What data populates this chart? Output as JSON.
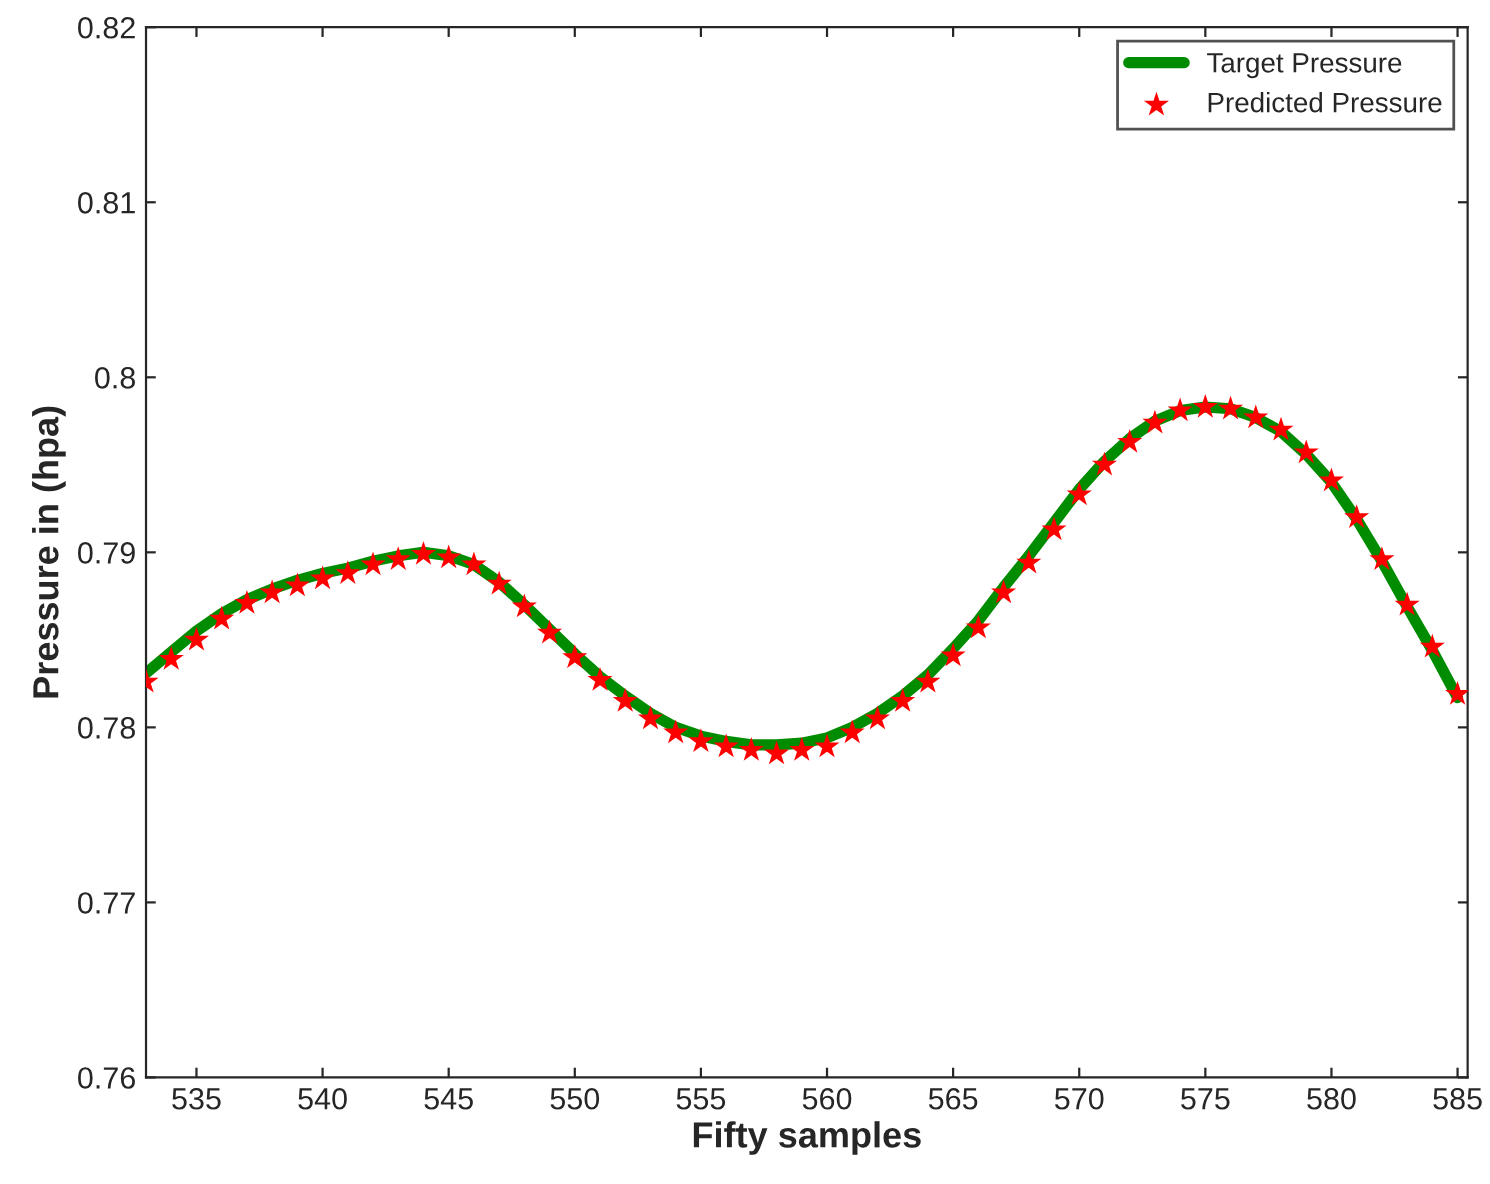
{
  "chart_data": {
    "type": "line",
    "xlabel": "Fifty samples",
    "ylabel": "Pressure in (hpa)",
    "x": [
      533,
      534,
      535,
      536,
      537,
      538,
      539,
      540,
      541,
      542,
      543,
      544,
      545,
      546,
      547,
      548,
      549,
      550,
      551,
      552,
      553,
      554,
      555,
      556,
      557,
      558,
      559,
      560,
      561,
      562,
      563,
      564,
      565,
      566,
      567,
      568,
      569,
      570,
      571,
      572,
      573,
      574,
      575,
      576,
      577,
      578,
      579,
      580,
      581,
      582,
      583,
      584,
      585
    ],
    "series": [
      {
        "name": "Target Pressure",
        "color": "#008c00",
        "marker": "none",
        "line_style": "solid",
        "values": [
          0.7831,
          0.7843,
          0.7855,
          0.7865,
          0.7873,
          0.7879,
          0.7884,
          0.7888,
          0.7891,
          0.7895,
          0.7898,
          0.79,
          0.7898,
          0.7893,
          0.7883,
          0.787,
          0.7856,
          0.7842,
          0.7829,
          0.7818,
          0.7808,
          0.78,
          0.7795,
          0.7792,
          0.779,
          0.779,
          0.7791,
          0.7794,
          0.78,
          0.7808,
          0.7818,
          0.783,
          0.7845,
          0.7861,
          0.788,
          0.7898,
          0.7917,
          0.7936,
          0.7952,
          0.7965,
          0.7975,
          0.7981,
          0.7983,
          0.7982,
          0.7977,
          0.7969,
          0.7956,
          0.794,
          0.7919,
          0.7895,
          0.7869,
          0.7844,
          0.7817
        ]
      },
      {
        "name": "Predicted Pressure",
        "type": "scatter",
        "color": "#ff0000",
        "marker": "star",
        "values": [
          0.7826,
          0.7839,
          0.785,
          0.7862,
          0.7871,
          0.7877,
          0.7881,
          0.7885,
          0.7888,
          0.7893,
          0.7896,
          0.7899,
          0.7897,
          0.7893,
          0.7882,
          0.7869,
          0.7854,
          0.784,
          0.7827,
          0.7815,
          0.7805,
          0.7797,
          0.7792,
          0.7789,
          0.7787,
          0.7785,
          0.7787,
          0.7789,
          0.7797,
          0.7805,
          0.7815,
          0.7826,
          0.7841,
          0.7857,
          0.7877,
          0.7894,
          0.7913,
          0.7933,
          0.795,
          0.7963,
          0.7974,
          0.7981,
          0.7983,
          0.7982,
          0.7977,
          0.797,
          0.7957,
          0.7941,
          0.792,
          0.7896,
          0.787,
          0.7846,
          0.7819
        ]
      }
    ],
    "xlim": [
      533,
      585.4
    ],
    "xticks": [
      535,
      540,
      545,
      550,
      555,
      560,
      565,
      570,
      575,
      580,
      585
    ],
    "ylim": [
      0.76,
      0.82
    ],
    "yticks": [
      0.76,
      0.77,
      0.78,
      0.79,
      0.8,
      0.81,
      0.82
    ],
    "grid": false,
    "legend": "top right"
  }
}
